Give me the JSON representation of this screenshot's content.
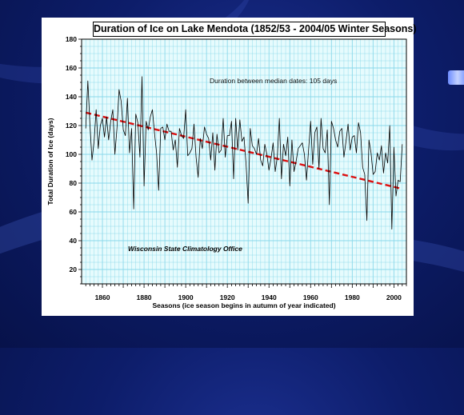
{
  "chart_data": {
    "type": "line",
    "title": "Duration of Ice on Lake Mendota (1852/53 - 2004/05 Winter Seasons)",
    "xlabel": "Seasons (ice season begins in autumn of year indicated)",
    "ylabel": "Total Duration of Ice (days)",
    "xlim": [
      1850,
      2006
    ],
    "ylim": [
      10,
      180
    ],
    "xticks": [
      1860,
      1880,
      1900,
      1920,
      1940,
      1960,
      1980,
      2000
    ],
    "yticks": [
      20,
      40,
      60,
      80,
      100,
      120,
      140,
      160,
      180
    ],
    "grid": true,
    "annotations": {
      "median_note": "Duration between median dates: 105 days",
      "credit": "Wisconsin State Climatology Office"
    },
    "colors": {
      "line": "#000000",
      "trend": "#dd1111",
      "grid": "#8ad8ea"
    },
    "series": [
      {
        "x": [
          1852,
          1853,
          1854,
          1855,
          1856,
          1857,
          1858,
          1859,
          1860,
          1861,
          1862,
          1863,
          1864,
          1865,
          1866,
          1867,
          1868,
          1869,
          1870,
          1871,
          1872,
          1873,
          1874,
          1875,
          1876,
          1877,
          1878,
          1879,
          1880,
          1881,
          1882,
          1883,
          1884,
          1885,
          1886,
          1887,
          1888,
          1889,
          1890,
          1891,
          1892,
          1893,
          1894,
          1895,
          1896,
          1897,
          1898,
          1899,
          1900,
          1901,
          1902,
          1903,
          1904,
          1905,
          1906,
          1907,
          1908,
          1909,
          1910,
          1911,
          1912,
          1913,
          1914,
          1915,
          1916,
          1917,
          1918,
          1919,
          1920,
          1921,
          1922,
          1923,
          1924,
          1925,
          1926,
          1927,
          1928,
          1929,
          1930,
          1931,
          1932,
          1933,
          1934,
          1935,
          1936,
          1937,
          1938,
          1939,
          1940,
          1941,
          1942,
          1943,
          1944,
          1945,
          1946,
          1947,
          1948,
          1949,
          1950,
          1951,
          1952,
          1953,
          1954,
          1955,
          1956,
          1957,
          1958,
          1959,
          1960,
          1961,
          1962,
          1963,
          1964,
          1965,
          1966,
          1967,
          1968,
          1969,
          1970,
          1971,
          1972,
          1973,
          1974,
          1975,
          1976,
          1977,
          1978,
          1979,
          1980,
          1981,
          1982,
          1983,
          1984,
          1985,
          1986,
          1987,
          1988,
          1989,
          1990,
          1991,
          1992,
          1993,
          1994,
          1995,
          1996,
          1997,
          1998,
          1999,
          2000,
          2001,
          2002,
          2003,
          2004
        ],
        "values": [
          118,
          151,
          121,
          96,
          109,
          131,
          104,
          120,
          125,
          112,
          126,
          110,
          123,
          131,
          100,
          118,
          145,
          137,
          117,
          113,
          139,
          101,
          118,
          62,
          128,
          122,
          98,
          154,
          78,
          123,
          117,
          126,
          131,
          115,
          101,
          75,
          118,
          119,
          110,
          121,
          116,
          116,
          103,
          110,
          91,
          118,
          113,
          111,
          131,
          99,
          101,
          104,
          121,
          98,
          84,
          111,
          104,
          119,
          114,
          111,
          96,
          115,
          89,
          114,
          101,
          103,
          125,
          98,
          113,
          113,
          123,
          83,
          125,
          103,
          124,
          109,
          112,
          93,
          66,
          118,
          106,
          104,
          100,
          111,
          96,
          92,
          107,
          100,
          89,
          97,
          108,
          88,
          98,
          125,
          83,
          107,
          99,
          112,
          78,
          110,
          88,
          95,
          104,
          106,
          108,
          100,
          82,
          103,
          123,
          93,
          115,
          119,
          90,
          125,
          104,
          101,
          117,
          65,
          123,
          118,
          110,
          105,
          116,
          118,
          98,
          109,
          121,
          103,
          112,
          113,
          101,
          122,
          115,
          91,
          86,
          54,
          110,
          101,
          86,
          88,
          101,
          96,
          106,
          87,
          101,
          94,
          120,
          48,
          105,
          71,
          82,
          81,
          107
        ]
      }
    ],
    "trend": {
      "x": [
        1852,
        2004
      ],
      "values": [
        129,
        76
      ]
    }
  }
}
